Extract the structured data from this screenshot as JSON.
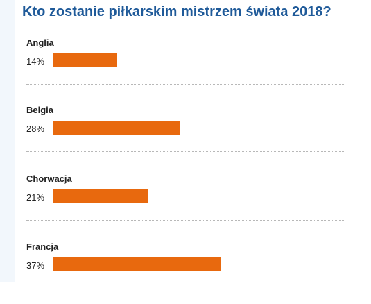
{
  "poll": {
    "title": "Kto zostanie piłkarskim mistrzem świata 2018?",
    "accent_color": "#e8690e",
    "title_color": "#1f5a99",
    "options": [
      {
        "label": "Anglia",
        "percent_label": "14%",
        "value": 14
      },
      {
        "label": "Belgia",
        "percent_label": "28%",
        "value": 28
      },
      {
        "label": "Chorwacja",
        "percent_label": "21%",
        "value": 21
      },
      {
        "label": "Francja",
        "percent_label": "37%",
        "value": 37
      }
    ]
  }
}
